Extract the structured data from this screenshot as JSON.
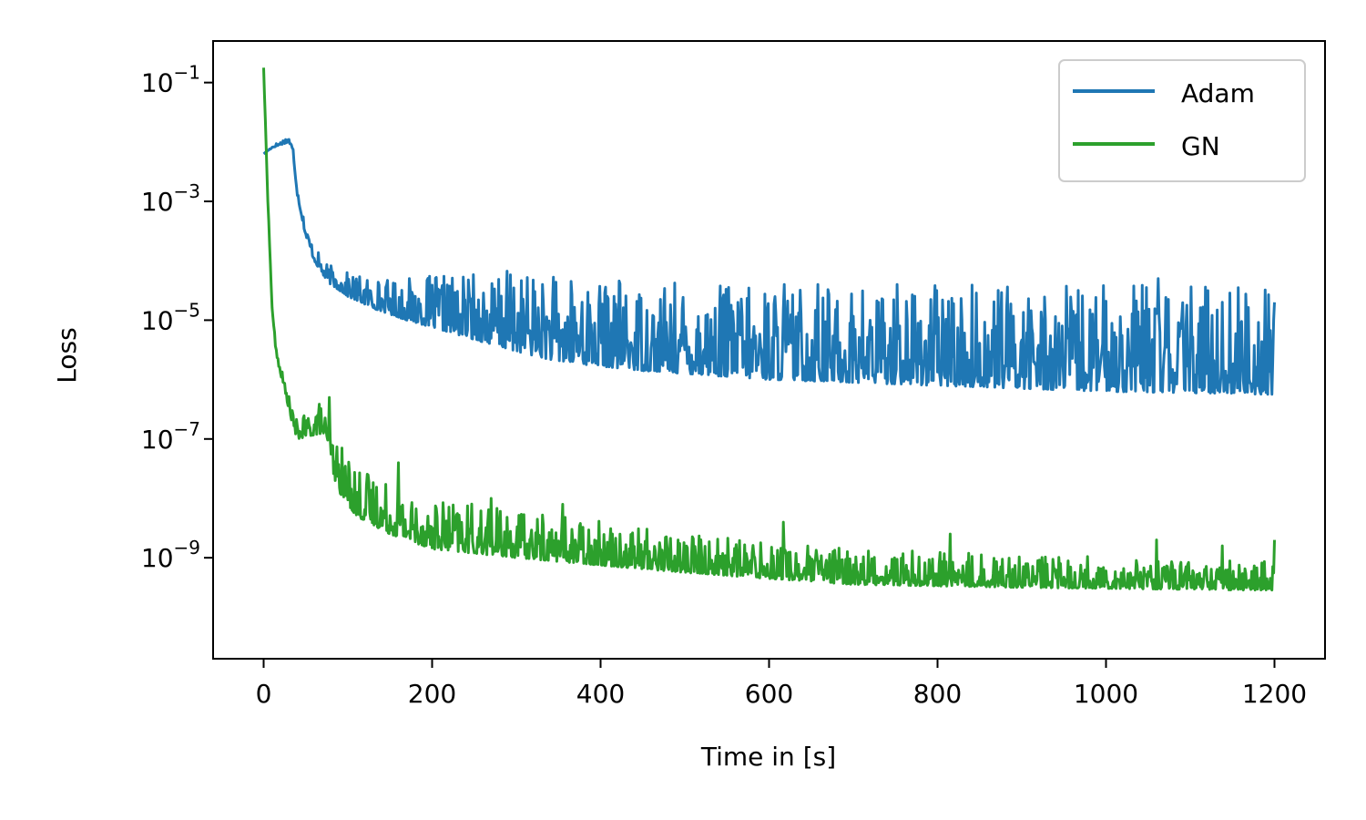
{
  "chart_data": {
    "type": "line",
    "title": "",
    "xlabel": "Time in [s]",
    "ylabel": "Loss",
    "xlim": [
      -60,
      1260
    ],
    "ylim_log10": [
      -10.7,
      -0.3
    ],
    "yscale": "log",
    "xticks": [
      {
        "value": 0,
        "label": "0"
      },
      {
        "value": 200,
        "label": "200"
      },
      {
        "value": 400,
        "label": "400"
      },
      {
        "value": 600,
        "label": "600"
      },
      {
        "value": 800,
        "label": "800"
      },
      {
        "value": 1000,
        "label": "1000"
      },
      {
        "value": 1200,
        "label": "1200"
      }
    ],
    "yticks": [
      {
        "exp": -1,
        "base": "10",
        "sup": "−1"
      },
      {
        "exp": -3,
        "base": "10",
        "sup": "−3"
      },
      {
        "exp": -5,
        "base": "10",
        "sup": "−5"
      },
      {
        "exp": -7,
        "base": "10",
        "sup": "−7"
      },
      {
        "exp": -9,
        "base": "10",
        "sup": "−9"
      }
    ],
    "legend": {
      "placement": "top-right"
    },
    "grid": false,
    "series": [
      {
        "name": "Adam",
        "color": "#1f77b4",
        "points": [
          [
            0,
            -2.2
          ],
          [
            10,
            -2.1
          ],
          [
            20,
            -2.05
          ],
          [
            30,
            -2.0
          ],
          [
            35,
            -2.2
          ],
          [
            40,
            -2.9
          ],
          [
            50,
            -3.6
          ],
          [
            60,
            -4.0
          ],
          [
            75,
            -4.35
          ],
          [
            100,
            -4.6
          ],
          [
            130,
            -4.8
          ],
          [
            170,
            -5.0
          ],
          [
            220,
            -5.2
          ],
          [
            280,
            -5.45
          ],
          [
            350,
            -5.7
          ],
          [
            450,
            -5.85
          ],
          [
            600,
            -6.0
          ],
          [
            800,
            -6.1
          ],
          [
            1000,
            -6.2
          ],
          [
            1200,
            -6.25
          ]
        ],
        "noise_band": [
          [
            150,
            0.6
          ],
          [
            300,
            1.4
          ],
          [
            600,
            1.6
          ],
          [
            1200,
            1.9
          ]
        ],
        "spikes": [
          [
            272,
            -4.8
          ],
          [
            378,
            -4.7
          ],
          [
            618,
            -4.4
          ],
          [
            658,
            -4.4
          ],
          [
            752,
            -4.4
          ],
          [
            872,
            -4.5
          ],
          [
            1062,
            -4.3
          ],
          [
            1138,
            -4.7
          ],
          [
            1200,
            -4.7
          ]
        ]
      },
      {
        "name": "GN",
        "color": "#2ca02c",
        "points": [
          [
            0,
            -0.75
          ],
          [
            5,
            -3.0
          ],
          [
            10,
            -4.8
          ],
          [
            15,
            -5.6
          ],
          [
            25,
            -6.2
          ],
          [
            35,
            -6.8
          ],
          [
            40,
            -7.0
          ],
          [
            70,
            -6.9
          ],
          [
            75,
            -7.3
          ],
          [
            80,
            -7.5
          ],
          [
            90,
            -7.9
          ],
          [
            110,
            -8.3
          ],
          [
            150,
            -8.6
          ],
          [
            200,
            -8.85
          ],
          [
            300,
            -9.0
          ],
          [
            500,
            -9.25
          ],
          [
            700,
            -9.45
          ],
          [
            900,
            -9.5
          ],
          [
            1200,
            -9.55
          ]
        ],
        "noise_band": [
          [
            40,
            0.3
          ],
          [
            100,
            0.9
          ],
          [
            300,
            0.8
          ],
          [
            700,
            0.6
          ],
          [
            1200,
            0.5
          ]
        ],
        "spikes": [
          [
            78,
            -6.3
          ],
          [
            160,
            -7.4
          ],
          [
            270,
            -8.0
          ],
          [
            355,
            -8.1
          ],
          [
            617,
            -8.4
          ],
          [
            815,
            -8.6
          ],
          [
            1060,
            -8.7
          ],
          [
            1138,
            -8.8
          ],
          [
            1200,
            -8.7
          ]
        ]
      }
    ]
  }
}
